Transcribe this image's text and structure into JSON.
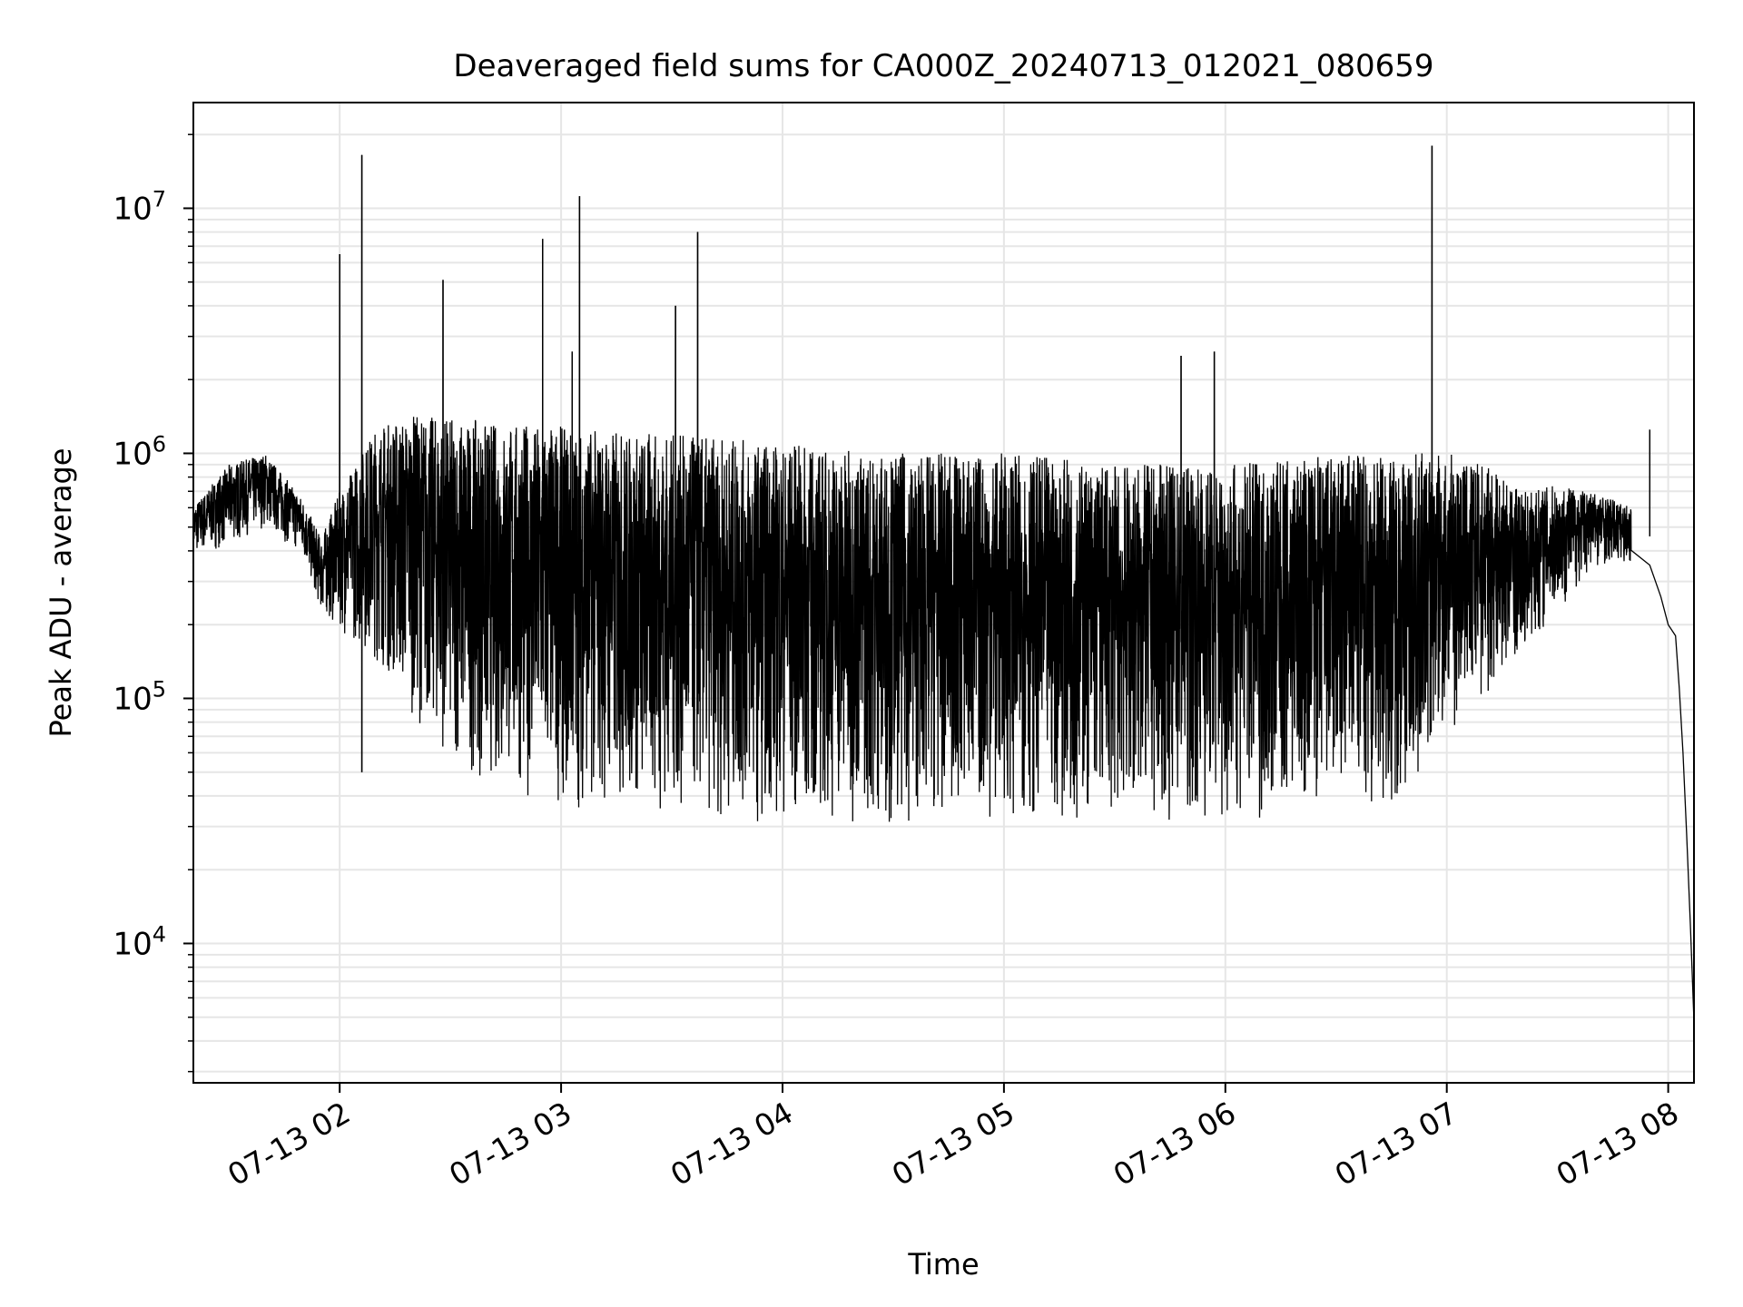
{
  "chart_data": {
    "type": "line",
    "title": "Deaveraged field sums for CA000Z_20240713_012021_080659",
    "xlabel": "Time",
    "ylabel": "Peak ADU - average",
    "yscale": "log",
    "ylim": [
      2700,
      27000000
    ],
    "xlim": [
      "2024-07-13T01:20:21",
      "2024-07-13T08:06:59"
    ],
    "grid": true,
    "grid_minor": true,
    "legend": "none",
    "line_color": "#000000",
    "x_ticks": [
      {
        "time": "2024-07-13T02:00",
        "label": "07-13 02"
      },
      {
        "time": "2024-07-13T03:00",
        "label": "07-13 03"
      },
      {
        "time": "2024-07-13T04:00",
        "label": "07-13 04"
      },
      {
        "time": "2024-07-13T05:00",
        "label": "07-13 05"
      },
      {
        "time": "2024-07-13T06:00",
        "label": "07-13 06"
      },
      {
        "time": "2024-07-13T07:00",
        "label": "07-13 07"
      },
      {
        "time": "2024-07-13T08:00",
        "label": "07-13 08"
      }
    ],
    "y_ticks": [
      {
        "value": 10000,
        "base": "10",
        "exp": "4"
      },
      {
        "value": 100000,
        "base": "10",
        "exp": "5"
      },
      {
        "value": 1000000,
        "base": "10",
        "exp": "6"
      },
      {
        "value": 10000000,
        "base": "10",
        "exp": "7"
      }
    ],
    "envelope": [
      {
        "time": "2024-07-13T01:20",
        "low": 380000,
        "high": 600000
      },
      {
        "time": "2024-07-13T01:30",
        "low": 420000,
        "high": 900000
      },
      {
        "time": "2024-07-13T01:40",
        "low": 500000,
        "high": 1000000
      },
      {
        "time": "2024-07-13T01:50",
        "low": 380000,
        "high": 650000
      },
      {
        "time": "2024-07-13T01:55",
        "low": 220000,
        "high": 450000
      },
      {
        "time": "2024-07-13T02:00",
        "low": 190000,
        "high": 700000
      },
      {
        "time": "2024-07-13T02:10",
        "low": 140000,
        "high": 1300000
      },
      {
        "time": "2024-07-13T02:20",
        "low": 85000,
        "high": 1450000
      },
      {
        "time": "2024-07-13T02:30",
        "low": 55000,
        "high": 1400000
      },
      {
        "time": "2024-07-13T02:40",
        "low": 45000,
        "high": 1350000
      },
      {
        "time": "2024-07-13T03:00",
        "low": 36000,
        "high": 1300000
      },
      {
        "time": "2024-07-13T03:30",
        "low": 33000,
        "high": 1200000
      },
      {
        "time": "2024-07-13T04:00",
        "low": 31000,
        "high": 1100000
      },
      {
        "time": "2024-07-13T04:30",
        "low": 31000,
        "high": 1000000
      },
      {
        "time": "2024-07-13T05:00",
        "low": 32000,
        "high": 1000000
      },
      {
        "time": "2024-07-13T05:30",
        "low": 32000,
        "high": 900000
      },
      {
        "time": "2024-07-13T06:00",
        "low": 32000,
        "high": 900000
      },
      {
        "time": "2024-07-13T06:30",
        "low": 31000,
        "high": 1000000
      },
      {
        "time": "2024-07-13T06:50",
        "low": 38000,
        "high": 1000000
      },
      {
        "time": "2024-07-13T07:00",
        "low": 70000,
        "high": 1000000
      },
      {
        "time": "2024-07-13T07:10",
        "low": 100000,
        "high": 900000
      },
      {
        "time": "2024-07-13T07:20",
        "low": 150000,
        "high": 700000
      },
      {
        "time": "2024-07-13T07:30",
        "low": 220000,
        "high": 750000
      },
      {
        "time": "2024-07-13T07:40",
        "low": 350000,
        "high": 700000
      },
      {
        "time": "2024-07-13T07:50",
        "low": 350000,
        "high": 600000
      }
    ],
    "spikes": [
      {
        "time": "2024-07-13T02:00",
        "value": 6500000
      },
      {
        "time": "2024-07-13T02:06",
        "value": 16500000
      },
      {
        "time": "2024-07-13T02:06",
        "value": 50000
      },
      {
        "time": "2024-07-13T02:28",
        "value": 5100000
      },
      {
        "time": "2024-07-13T02:55",
        "value": 7500000
      },
      {
        "time": "2024-07-13T03:03",
        "value": 2600000
      },
      {
        "time": "2024-07-13T03:05",
        "value": 11200000
      },
      {
        "time": "2024-07-13T03:31",
        "value": 4000000
      },
      {
        "time": "2024-07-13T03:37",
        "value": 8000000
      },
      {
        "time": "2024-07-13T05:48",
        "value": 2500000
      },
      {
        "time": "2024-07-13T05:57",
        "value": 2600000
      },
      {
        "time": "2024-07-13T06:56",
        "value": 18000000
      },
      {
        "time": "2024-07-13T07:55",
        "value": 1250000
      }
    ],
    "tail": [
      {
        "time": "2024-07-13T07:55",
        "value": 350000
      },
      {
        "time": "2024-07-13T07:58",
        "value": 260000
      },
      {
        "time": "2024-07-13T08:00",
        "value": 200000
      },
      {
        "time": "2024-07-13T08:02",
        "value": 180000
      },
      {
        "time": "2024-07-13T08:03",
        "value": 110000
      },
      {
        "time": "2024-07-13T08:04",
        "value": 60000
      },
      {
        "time": "2024-07-13T08:05",
        "value": 28000
      },
      {
        "time": "2024-07-13T08:06",
        "value": 12000
      },
      {
        "time": "2024-07-13T08:06:59",
        "value": 4800
      }
    ]
  }
}
